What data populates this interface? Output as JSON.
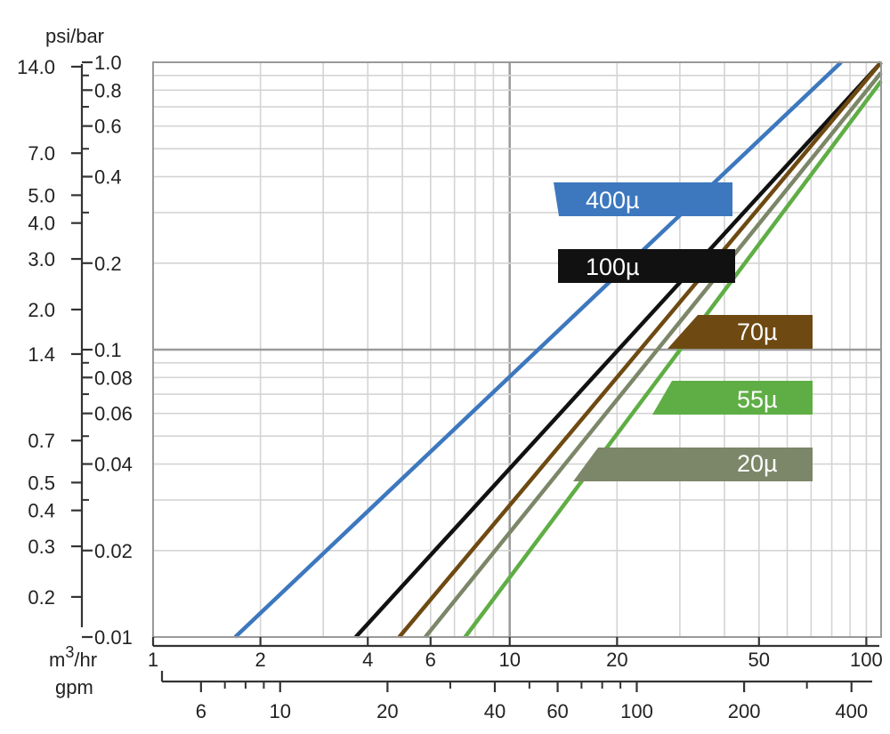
{
  "chart_data": {
    "type": "line",
    "title": "",
    "x_scale": "log",
    "y_scale": "log",
    "x_primary": {
      "label": "m3/hr",
      "label_parts": [
        "m",
        "3",
        "/hr"
      ],
      "range": [
        1,
        110
      ],
      "ticks": [
        1,
        2,
        4,
        6,
        10,
        20,
        50,
        100
      ],
      "tick_labels": [
        "1",
        "2",
        "4",
        "6",
        "10",
        "20",
        "50",
        "100"
      ]
    },
    "x_secondary": {
      "label": "gpm",
      "ticks": [
        6,
        10,
        20,
        40,
        60,
        100,
        200,
        400
      ],
      "tick_labels": [
        "6",
        "10",
        "20",
        "40",
        "60",
        "100",
        "200",
        "400"
      ],
      "minor_ticks": [
        7,
        8,
        9,
        30,
        50,
        70,
        80,
        90,
        300
      ]
    },
    "y_primary": {
      "label": "bar",
      "range": [
        0.01,
        1.0
      ],
      "ticks": [
        0.01,
        0.02,
        0.04,
        0.06,
        0.08,
        0.1,
        0.2,
        0.4,
        0.6,
        0.8,
        1.0
      ],
      "tick_labels": [
        "0.01",
        "0.02",
        "0.04",
        "0.06",
        "0.08",
        "0.1",
        "0.2",
        "0.4",
        "0.6",
        "0.8",
        "1.0"
      ],
      "minor_ticks": [
        0.03,
        0.05,
        0.07,
        0.09,
        0.3,
        0.5,
        0.7,
        0.9
      ]
    },
    "y_secondary": {
      "label": "psi",
      "ticks": [
        0.2,
        0.3,
        0.4,
        0.5,
        0.7,
        1.4,
        2.0,
        3.0,
        4.0,
        5.0,
        7.0,
        14.0
      ],
      "tick_labels": [
        "0.2",
        "0.3",
        "0.4",
        "0.5",
        "0.7",
        "1.4",
        "2.0",
        "3.0",
        "4.0",
        "5.0",
        "7.0",
        "14.0"
      ]
    },
    "axis_units_label": "psi/bar",
    "grid": true,
    "series": [
      {
        "name": "400µ",
        "color": "#3d78be",
        "x": [
          1.7,
          85
        ],
        "y": [
          0.01,
          1.0
        ]
      },
      {
        "name": "100µ",
        "color": "#111111",
        "x": [
          3.7,
          110
        ],
        "y": [
          0.01,
          1.0
        ]
      },
      {
        "name": "70µ",
        "color": "#6e4a12",
        "x": [
          4.9,
          110
        ],
        "y": [
          0.01,
          1.0
        ]
      },
      {
        "name": "55µ",
        "color": "#5fae45",
        "x": [
          7.5,
          110
        ],
        "y": [
          0.01,
          0.86
        ]
      },
      {
        "name": "20µ",
        "color": "#7c8668",
        "x": [
          5.8,
          110
        ],
        "y": [
          0.01,
          0.92
        ]
      }
    ],
    "annotations": [
      {
        "text": "400µ",
        "color": "#3d78be"
      },
      {
        "text": "100µ",
        "color": "#111111"
      },
      {
        "text": "70µ",
        "color": "#6e4a12"
      },
      {
        "text": "55µ",
        "color": "#5fae45"
      },
      {
        "text": "20µ",
        "color": "#7c8668"
      }
    ]
  }
}
